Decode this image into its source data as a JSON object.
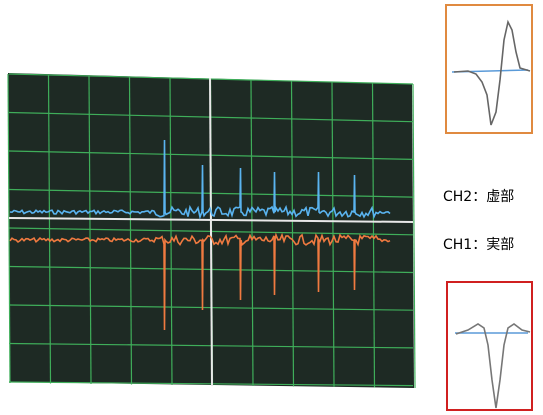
{
  "labels": {
    "ch2": "CH2：虚部",
    "ch1": "CH1：実部"
  }
}
